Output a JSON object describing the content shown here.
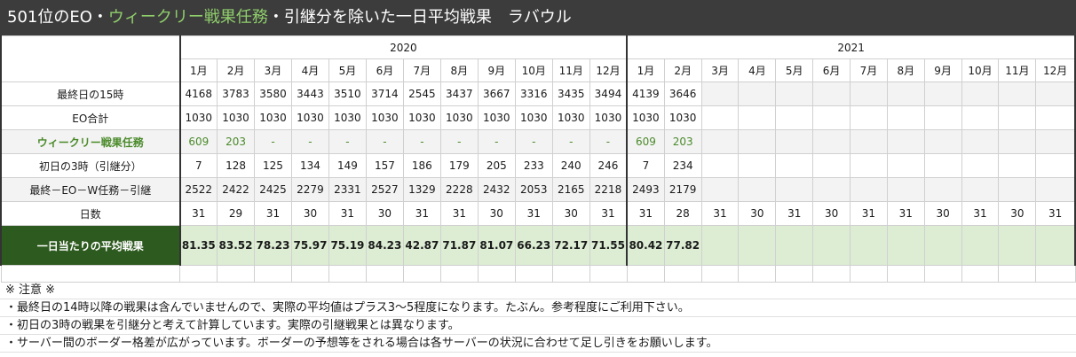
{
  "title": {
    "part1": "501位のEO・",
    "part2": "ウィークリー戦果任務",
    "part3": "・引継分を除いた一日平均戦果　ラバウル"
  },
  "years": [
    "2020",
    "2021"
  ],
  "months": [
    "1月",
    "2月",
    "3月",
    "4月",
    "5月",
    "6月",
    "7月",
    "8月",
    "9月",
    "10月",
    "11月",
    "12月",
    "1月",
    "2月",
    "3月",
    "4月",
    "5月",
    "6月",
    "7月",
    "8月",
    "9月",
    "10月",
    "11月",
    "12月"
  ],
  "rows": {
    "last15": {
      "label": "最終日の15時",
      "values": [
        "4168",
        "3783",
        "3580",
        "3443",
        "3510",
        "3714",
        "2545",
        "3437",
        "3667",
        "3316",
        "3435",
        "3494",
        "4139",
        "3646",
        "",
        "",
        "",
        "",
        "",
        "",
        "",
        "",
        "",
        ""
      ]
    },
    "eo": {
      "label": "EO合計",
      "values": [
        "1030",
        "1030",
        "1030",
        "1030",
        "1030",
        "1030",
        "1030",
        "1030",
        "1030",
        "1030",
        "1030",
        "1030",
        "1030",
        "1030",
        "",
        "",
        "",
        "",
        "",
        "",
        "",
        "",
        "",
        ""
      ]
    },
    "weekly": {
      "label": "ウィークリー戦果任務",
      "values": [
        "609",
        "203",
        "-",
        "-",
        "-",
        "-",
        "-",
        "-",
        "-",
        "-",
        "-",
        "-",
        "609",
        "203",
        "",
        "",
        "",
        "",
        "",
        "",
        "",
        "",
        "",
        ""
      ]
    },
    "carry": {
      "label": "初日の3時（引継分）",
      "values": [
        "7",
        "128",
        "125",
        "134",
        "149",
        "157",
        "186",
        "179",
        "205",
        "233",
        "240",
        "246",
        "7",
        "234",
        "",
        "",
        "",
        "",
        "",
        "",
        "",
        "",
        "",
        ""
      ]
    },
    "net": {
      "label": "最終－EO－W任務－引継",
      "values": [
        "2522",
        "2422",
        "2425",
        "2279",
        "2331",
        "2527",
        "1329",
        "2228",
        "2432",
        "2053",
        "2165",
        "2218",
        "2493",
        "2179",
        "",
        "",
        "",
        "",
        "",
        "",
        "",
        "",
        "",
        ""
      ]
    },
    "days": {
      "label": "日数",
      "values": [
        "31",
        "29",
        "31",
        "30",
        "31",
        "30",
        "31",
        "31",
        "30",
        "31",
        "30",
        "31",
        "31",
        "28",
        "31",
        "30",
        "31",
        "30",
        "31",
        "31",
        "30",
        "31",
        "30",
        "31"
      ]
    },
    "avg": {
      "label": "一日当たりの平均戦果",
      "values": [
        "81.35",
        "83.52",
        "78.23",
        "75.97",
        "75.19",
        "84.23",
        "42.87",
        "71.87",
        "81.07",
        "66.23",
        "72.17",
        "71.55",
        "80.42",
        "77.82",
        "",
        "",
        "",
        "",
        "",
        "",
        "",
        "",
        "",
        ""
      ]
    }
  },
  "notes": {
    "heading": "※ 注意 ※",
    "line1": "・最終日の14時以降の戦果は含んでいませんので、実際の平均値はプラス3～5程度になります。たぶん。参考程度にご利用下さい。",
    "line2": "・初日の3時の戦果を引継分と考えて計算しています。実際の引継戦果とは異なります。",
    "line3": "・サーバー間のボーダー格差が広がっています。ボーダーの予想等をされる場合は各サーバーの状況に合わせて足し引きをお願いします。"
  },
  "colors": {
    "title_bg": "#3c3c3c",
    "title_accent": "#8fce6b",
    "weekly_green": "#4a8a2a",
    "avg_label_bg": "#2d5a1e",
    "avg_row_bg": "#dcedd3"
  }
}
